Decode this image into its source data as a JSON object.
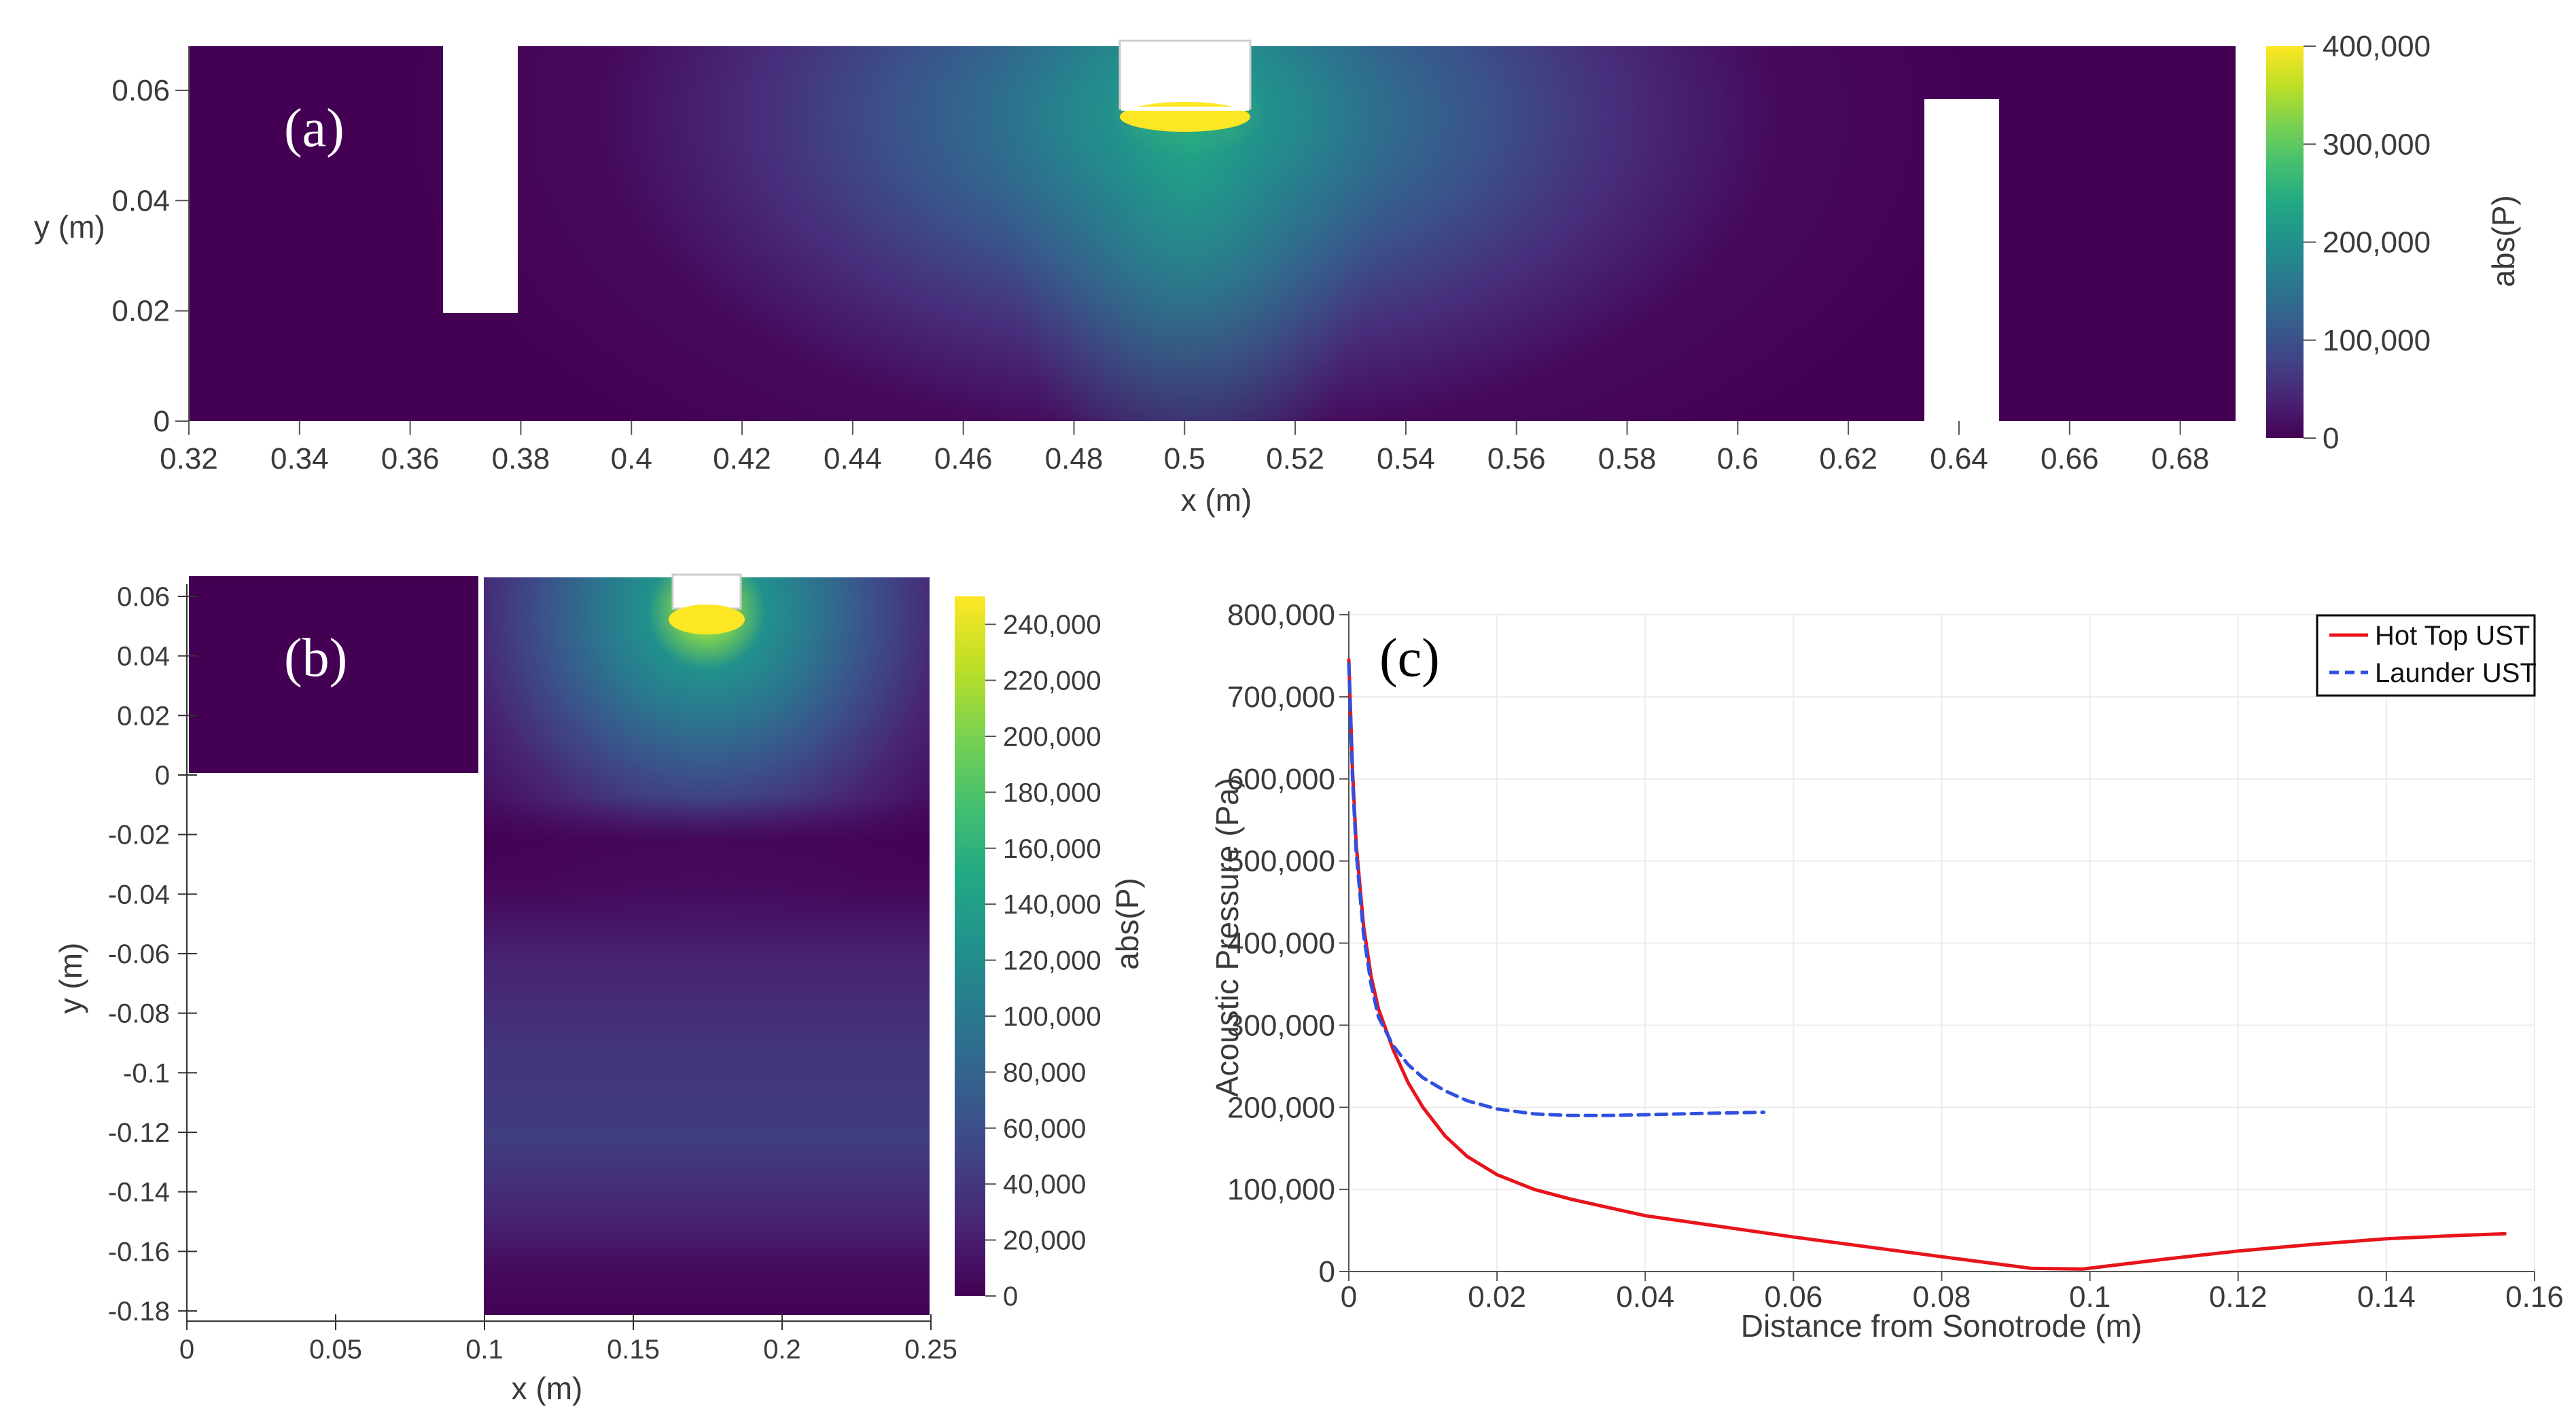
{
  "figure": {
    "panel_a": {
      "label": "(a)",
      "xlabel": "x (m)",
      "ylabel": "y (m)",
      "xticks": [
        "0.32",
        "0.34",
        "0.36",
        "0.38",
        "0.4",
        "0.42",
        "0.44",
        "0.46",
        "0.48",
        "0.5",
        "0.52",
        "0.54",
        "0.56",
        "0.58",
        "0.6",
        "0.62",
        "0.64",
        "0.66",
        "0.68"
      ],
      "yticks": [
        "0",
        "0.02",
        "0.04",
        "0.06"
      ],
      "colorbar_title": "abs(P)",
      "colorbar_ticks": [
        "0",
        "100,000",
        "200,000",
        "300,000",
        "400,000"
      ]
    },
    "panel_b": {
      "label": "(b)",
      "xlabel": "x (m)",
      "ylabel": "y (m)",
      "xticks": [
        "0",
        "0.05",
        "0.1",
        "0.15",
        "0.2",
        "0.25"
      ],
      "yticks": [
        "0.06",
        "0.04",
        "0.02",
        "0",
        "-0.02",
        "-0.04",
        "-0.06",
        "-0.08",
        "-0.1",
        "-0.12",
        "-0.14",
        "-0.16",
        "-0.18"
      ],
      "colorbar_title": "abs(P)",
      "colorbar_ticks": [
        "0",
        "20,000",
        "40,000",
        "60,000",
        "80,000",
        "100,000",
        "120,000",
        "140,000",
        "160,000",
        "180,000",
        "200,000",
        "220,000",
        "240,000"
      ]
    },
    "panel_c": {
      "label": "(c)"
    }
  },
  "chart_data": [
    {
      "type": "heatmap",
      "panel": "a",
      "title": "",
      "xlabel": "x (m)",
      "ylabel": "y (m)",
      "xlim": [
        0.32,
        0.69
      ],
      "ylim": [
        0,
        0.068
      ],
      "colorbar": {
        "title": "abs(P)",
        "range": [
          0,
          400000
        ],
        "colormap": "viridis"
      },
      "source": {
        "x": 0.5,
        "y": 0.055,
        "peak": 400000
      }
    },
    {
      "type": "heatmap",
      "panel": "b",
      "title": "",
      "xlabel": "x (m)",
      "ylabel": "y (m)",
      "xlim": [
        0,
        0.25
      ],
      "ylim": [
        -0.185,
        0.066
      ],
      "colorbar": {
        "title": "abs(P)",
        "range": [
          0,
          250000
        ],
        "colormap": "viridis"
      },
      "source": {
        "x": 0.175,
        "y": 0.055,
        "peak": 250000
      }
    },
    {
      "type": "line",
      "panel": "c",
      "title": "",
      "xlabel": "Distance from Sonotrode (m)",
      "ylabel": "Acoustic Pressure (Pa)",
      "xlim": [
        0,
        0.16
      ],
      "ylim": [
        0,
        800000
      ],
      "xticks": [
        "0",
        "0.02",
        "0.04",
        "0.06",
        "0.08",
        "0.1",
        "0.12",
        "0.14",
        "0.16"
      ],
      "yticks": [
        "0",
        "100,000",
        "200,000",
        "300,000",
        "400,000",
        "500,000",
        "600,000",
        "700,000",
        "800,000"
      ],
      "grid": true,
      "legend": "top-right",
      "series": [
        {
          "name": "Hot Top UST",
          "color": "#e8141c",
          "dash": "solid",
          "x": [
            0,
            0.0005,
            0.001,
            0.002,
            0.003,
            0.004,
            0.006,
            0.008,
            0.01,
            0.013,
            0.016,
            0.02,
            0.025,
            0.03,
            0.04,
            0.05,
            0.06,
            0.07,
            0.08,
            0.092,
            0.099,
            0.11,
            0.12,
            0.13,
            0.14,
            0.15,
            0.156
          ],
          "y": [
            745000,
            610000,
            520000,
            420000,
            360000,
            320000,
            270000,
            230000,
            200000,
            165000,
            140000,
            118000,
            100000,
            88000,
            68000,
            55000,
            42000,
            30000,
            18000,
            4000,
            3000,
            15000,
            25000,
            33000,
            40000,
            44000,
            46000
          ]
        },
        {
          "name": "Launder UST",
          "color": "#3050e0",
          "dash": "dashed",
          "x": [
            0,
            0.0005,
            0.001,
            0.002,
            0.003,
            0.004,
            0.006,
            0.008,
            0.01,
            0.013,
            0.016,
            0.02,
            0.025,
            0.03,
            0.035,
            0.04,
            0.045,
            0.05,
            0.056
          ],
          "y": [
            740000,
            600000,
            510000,
            410000,
            350000,
            310000,
            275000,
            252000,
            236000,
            220000,
            208000,
            198000,
            192000,
            190000,
            190000,
            191000,
            192000,
            193000,
            194000
          ]
        }
      ]
    }
  ]
}
